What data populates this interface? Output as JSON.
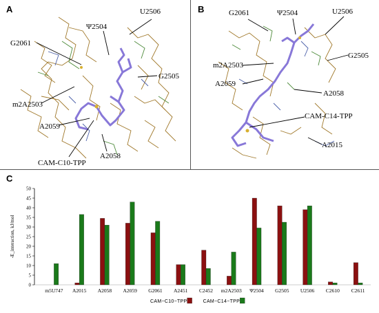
{
  "panels": {
    "a": {
      "label": "A",
      "residues": [
        "U2506",
        "Ψ2504",
        "G2061",
        "G2505",
        "m2A2503",
        "A2059",
        "CAM-C10-TPP",
        "A2058"
      ]
    },
    "b": {
      "label": "B",
      "residues": [
        "G2061",
        "Ψ2504",
        "U2506",
        "G2505",
        "m2A2503",
        "A2059",
        "A2058",
        "CAM-C14-TPP",
        "A2015"
      ]
    },
    "c": {
      "label": "C"
    }
  },
  "chart_data": {
    "type": "bar",
    "ylabel": "-E_interaction, kJ/mol",
    "ylim": [
      0,
      50
    ],
    "yticks": [
      0,
      5,
      10,
      15,
      20,
      25,
      30,
      35,
      40,
      45,
      50
    ],
    "categories": [
      "m5U747",
      "A2015",
      "A2058",
      "A2059",
      "G2061",
      "A2451",
      "C2452",
      "m2A2503",
      "Ψ2504",
      "G2505",
      "U2506",
      "C2610",
      "C2611"
    ],
    "series": [
      {
        "name": "CAM−C10−TPP",
        "color": "#8b1010",
        "values": [
          0,
          1,
          34.5,
          32,
          27,
          10.5,
          18,
          4.5,
          45,
          41,
          39,
          1.5,
          11.5
        ]
      },
      {
        "name": "CAM−C14−TPP",
        "color": "#1a7a1a",
        "values": [
          11,
          36.5,
          31,
          43,
          33,
          10.5,
          8.5,
          17,
          29.5,
          32.5,
          41,
          1,
          1
        ]
      }
    ],
    "legend_position": "bottom-center",
    "grid": false
  }
}
